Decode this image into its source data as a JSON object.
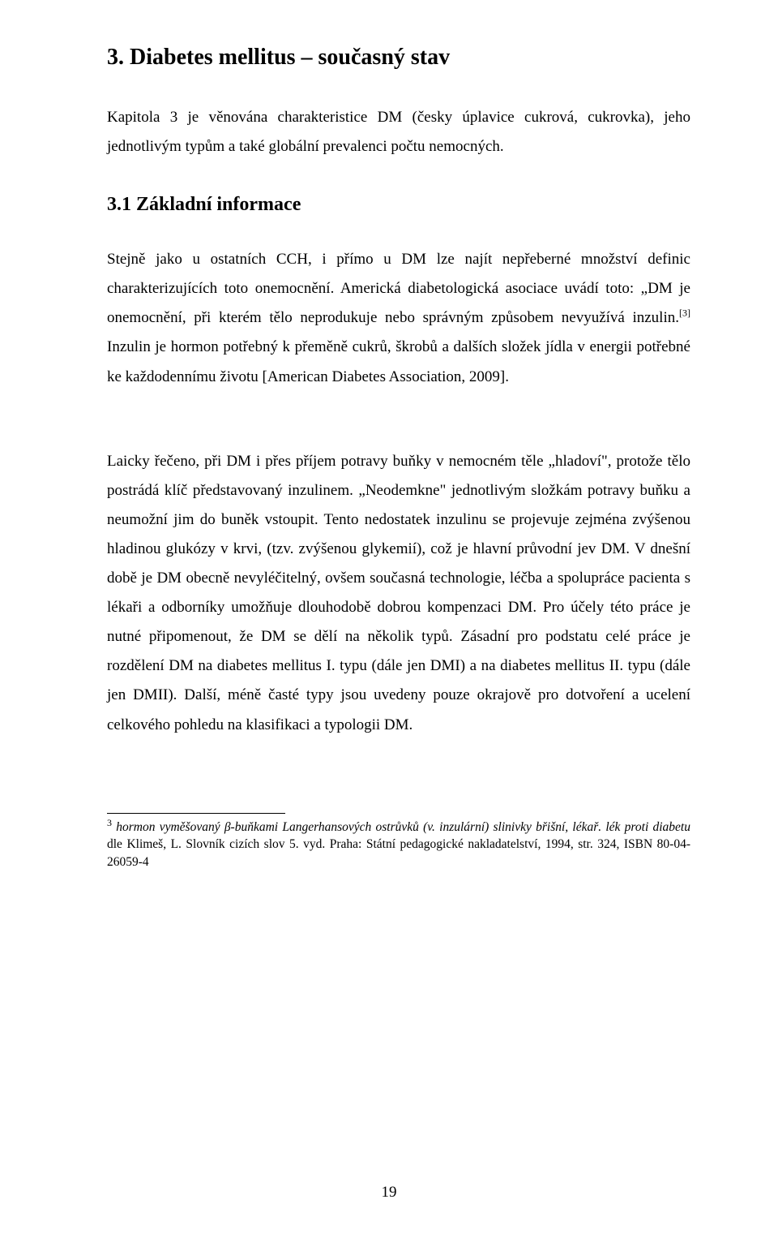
{
  "heading1": "3.  Diabetes mellitus – současný stav",
  "intro": "Kapitola 3 je věnována charakteristice DM (česky úplavice cukrová, cukrovka), jeho jednotlivým typům a také globální prevalenci počtu nemocných.",
  "heading2": "3.1   Základní informace",
  "para1_a": "Stejně jako u ostatních CCH, i přímo u DM lze najít nepřeberné množství definic charakterizujících toto onemocnění. Americká diabetologická asociace uvádí toto: „DM je onemocnění, při kterém tělo neprodukuje nebo správným způsobem nevyužívá inzulin.",
  "para1_sup": "[3]",
  "para1_b": " Inzulin je hormon potřebný k přeměně cukrů, škrobů a dalších složek jídla v energii potřebné ke každodennímu životu [American Diabetes Association, 2009].",
  "para2": "Laicky řečeno, při DM i přes příjem potravy buňky v nemocném těle „hladoví\", protože tělo postrádá klíč představovaný inzulinem. „Neodemkne\" jednotlivým složkám potravy buňku a neumožní jim do buněk vstoupit. Tento nedostatek inzulinu se projevuje zejména zvýšenou hladinou glukózy v krvi, (tzv. zvýšenou glykemií), což je hlavní průvodní jev DM. V dnešní době je DM obecně nevyléčitelný, ovšem současná technologie, léčba a spolupráce pacienta s lékaři a odborníky umožňuje dlouhodobě dobrou kompenzaci DM. Pro účely této práce je nutné připomenout, že DM se dělí na několik typů. Zásadní pro podstatu celé práce je rozdělení DM na diabetes mellitus I. typu (dále jen DMI) a na diabetes mellitus II. typu (dále jen DMII). Další, méně časté typy jsou uvedeny pouze okrajově pro dotvoření a ucelení celkového pohledu na klasifikaci a typologii DM.",
  "footnote_num": "3",
  "footnote_ital": " hormon vyměšovaný β-buňkami Langerhansových ostrůvků (v. inzulární) slinivky břišní, lékař. lék proti diabetu ",
  "footnote_rest": "dle Klimeš, L. Slovník cizích slov 5. vyd. Praha: Státní pedagogické nakladatelství, 1994, str. 324, ISBN 80-04-26059-4",
  "page_number": "19"
}
